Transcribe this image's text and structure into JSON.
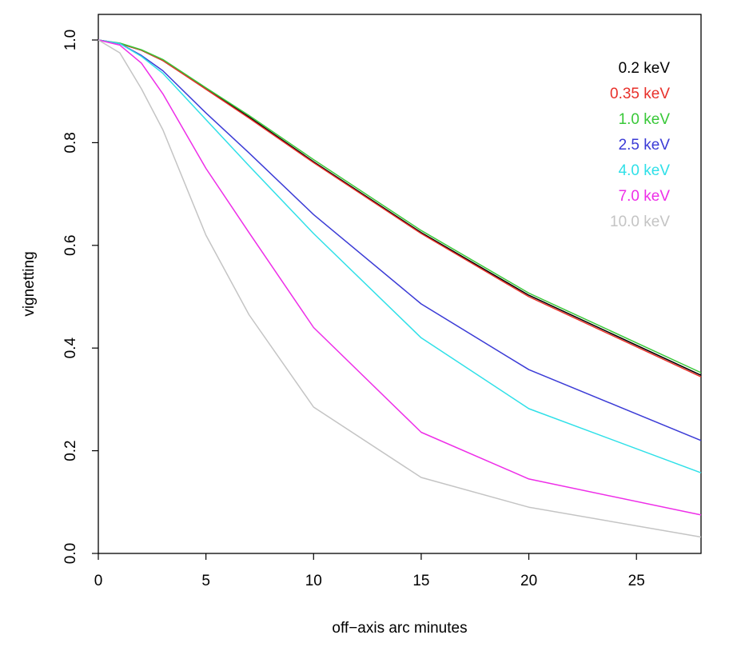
{
  "chart_data": {
    "type": "line",
    "title": "",
    "xlabel": "off−axis arc minutes",
    "ylabel": "vignetting",
    "xlim": [
      0,
      28
    ],
    "ylim": [
      0.0,
      1.0
    ],
    "xticks": [
      0,
      5,
      10,
      15,
      20,
      25
    ],
    "yticks": [
      0.0,
      0.2,
      0.4,
      0.6,
      0.8,
      1.0
    ],
    "xtick_labels": [
      "0",
      "5",
      "10",
      "15",
      "20",
      "25"
    ],
    "ytick_labels": [
      "0.0",
      "0.2",
      "0.4",
      "0.6",
      "0.8",
      "1.0"
    ],
    "grid": false,
    "legend_position": "top-right",
    "series": [
      {
        "name": "0.2 keV",
        "color": "#000000",
        "x": [
          0,
          1,
          2,
          3,
          5,
          7,
          10,
          15,
          20,
          28
        ],
        "y": [
          1.0,
          0.993,
          0.98,
          0.96,
          0.905,
          0.85,
          0.763,
          0.625,
          0.503,
          0.347
        ]
      },
      {
        "name": "0.35 keV",
        "color": "#e8302a",
        "x": [
          0,
          1,
          2,
          3,
          5,
          7,
          10,
          15,
          20,
          28
        ],
        "y": [
          1.0,
          0.993,
          0.98,
          0.96,
          0.904,
          0.848,
          0.761,
          0.623,
          0.5,
          0.344
        ]
      },
      {
        "name": "1.0 keV",
        "color": "#38c838",
        "x": [
          0,
          1,
          2,
          3,
          5,
          7,
          10,
          15,
          20,
          28
        ],
        "y": [
          1.0,
          0.994,
          0.981,
          0.962,
          0.907,
          0.853,
          0.767,
          0.629,
          0.507,
          0.352
        ]
      },
      {
        "name": "2.5 keV",
        "color": "#3b3bd6",
        "x": [
          0,
          1,
          2,
          3,
          5,
          7,
          10,
          15,
          20,
          28
        ],
        "y": [
          1.0,
          0.993,
          0.97,
          0.94,
          0.858,
          0.78,
          0.66,
          0.486,
          0.358,
          0.22
        ]
      },
      {
        "name": "4.0 keV",
        "color": "#2fe0e8",
        "x": [
          0,
          1,
          2,
          3,
          5,
          7,
          10,
          15,
          20,
          28
        ],
        "y": [
          1.0,
          0.993,
          0.968,
          0.935,
          0.845,
          0.755,
          0.623,
          0.42,
          0.282,
          0.157
        ]
      },
      {
        "name": "7.0 keV",
        "color": "#ee2ee8",
        "x": [
          0,
          1,
          2,
          3,
          5,
          7,
          10,
          15,
          20,
          28
        ],
        "y": [
          1.0,
          0.99,
          0.955,
          0.895,
          0.75,
          0.625,
          0.44,
          0.236,
          0.145,
          0.075
        ]
      },
      {
        "name": "10.0 keV",
        "color": "#c4c4c4",
        "x": [
          0,
          1,
          2,
          3,
          5,
          7,
          10,
          15,
          20,
          28
        ],
        "y": [
          1.0,
          0.975,
          0.905,
          0.825,
          0.62,
          0.465,
          0.285,
          0.148,
          0.09,
          0.032
        ]
      }
    ]
  }
}
